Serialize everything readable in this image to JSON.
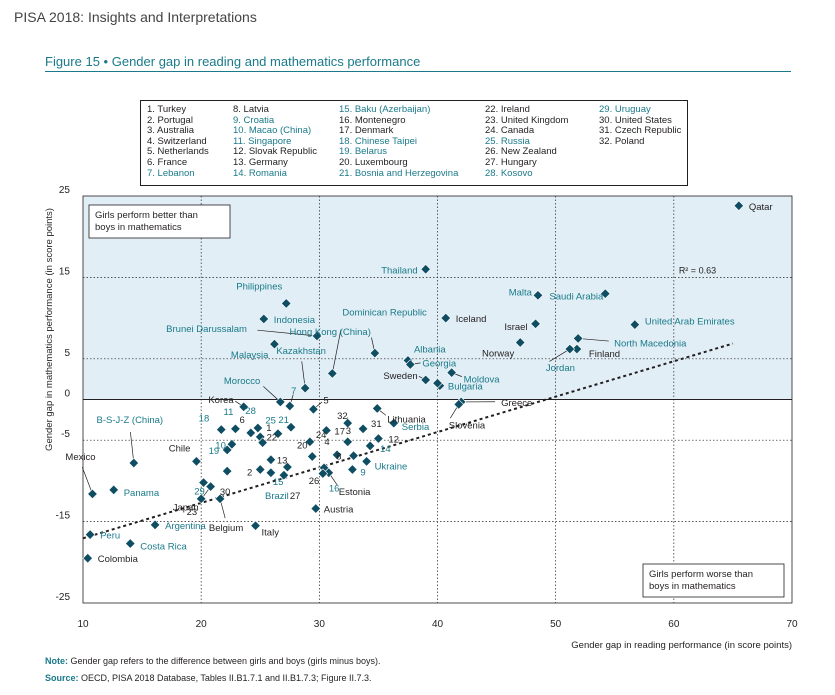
{
  "header": {
    "title": "PISA 2018: Insights and Interpretations"
  },
  "figure": {
    "number": "Figure 15",
    "separator": "•",
    "title": "Gender gap in reading and mathematics performance"
  },
  "country_key": [
    [
      "1. Turkey",
      "2. Portugal",
      "3. Australia",
      "4. Switzerland",
      "5. Netherlands",
      "6. France",
      "7. Lebanon"
    ],
    [
      "8. Latvia",
      "9. Croatia",
      "10. Macao (China)",
      "11. Singapore",
      "12. Slovak Republic",
      "13. Germany",
      "14. Romania"
    ],
    [
      "15. Baku (Azerbaijan)",
      "16. Montenegro",
      "17. Denmark",
      "18. Chinese Taipei",
      "19. Belarus",
      "20. Luxembourg",
      "21. Bosnia and Herzegovina"
    ],
    [
      "22. Ireland",
      "23. United Kingdom",
      "24. Canada",
      "25. Russia",
      "26. New Zealand",
      "27. Hungary",
      "28. Kosovo"
    ],
    [
      "29. Uruguay",
      "30. United States",
      "31. Czech Republic",
      "32. Poland"
    ]
  ],
  "country_key_teal": [
    "7. Lebanon",
    "9. Croatia",
    "10. Macao (China)",
    "11. Singapore",
    "14. Romania",
    "15. Baku (Azerbaijan)",
    "18. Chinese Taipei",
    "19. Belarus",
    "21. Bosnia and Herzegovina",
    "25. Russia",
    "28. Kosovo",
    "29. Uruguay"
  ],
  "colors": {
    "teal": "#1a7a8a",
    "dark": "#231f20",
    "marker": "#0f4d63",
    "band": "#e1eef5"
  },
  "chart_data": {
    "type": "scatter",
    "xlabel": "Gender gap in reading performance (in score points)",
    "ylabel": "Gender gap in mathematics performance (in score points)",
    "xlim": [
      10,
      70
    ],
    "ylim": [
      -25,
      25
    ],
    "x_ticks": [
      "10",
      "20",
      "30",
      "40",
      "50",
      "60",
      "70"
    ],
    "y_ticks": [
      "25",
      "15",
      "5",
      "0",
      "-5",
      "-15",
      "-25"
    ],
    "grid": "dotted at ticks",
    "shaded_region": "y > 0",
    "box_top": "Girls perform better than boys in mathematics",
    "box_bottom": "Girls perform worse than boys in mathematics",
    "trendline_label": "R² = 0.63",
    "points": [
      {
        "label": "Qatar",
        "x": 65.5,
        "y": 23.8,
        "c": "dark"
      },
      {
        "label": "Thailand",
        "x": 39,
        "y": 16,
        "c": "teal"
      },
      {
        "label": "Malta",
        "x": 48.5,
        "y": 12.8,
        "c": "teal"
      },
      {
        "label": "Saudi Arabia",
        "x": 54.2,
        "y": 13,
        "c": "teal"
      },
      {
        "label": "United Arab Emirates",
        "x": 56.7,
        "y": 9.2,
        "c": "teal"
      },
      {
        "label": "Iceland",
        "x": 40.7,
        "y": 10,
        "c": "dark"
      },
      {
        "label": "Israel",
        "x": 48.3,
        "y": 9.3,
        "c": "dark"
      },
      {
        "label": "North Macedonia",
        "x": 51.9,
        "y": 7.5,
        "c": "teal"
      },
      {
        "label": "Norway",
        "x": 47,
        "y": 7,
        "c": "dark"
      },
      {
        "label": "Finland",
        "x": 51.8,
        "y": 6.2,
        "c": "dark"
      },
      {
        "label": "Jordan",
        "x": 51.2,
        "y": 6.2,
        "c": "teal"
      },
      {
        "label": "Philippines",
        "x": 27.2,
        "y": 11.8,
        "c": "teal"
      },
      {
        "label": "Indonesia",
        "x": 25.3,
        "y": 9.9,
        "c": "teal"
      },
      {
        "label": "Brunei Darussalam",
        "x": 29.8,
        "y": 7.8,
        "c": "teal"
      },
      {
        "label": "Malaysia",
        "x": 26.2,
        "y": 6.8,
        "c": "teal"
      },
      {
        "label": "Dominican Republic",
        "x": 31.1,
        "y": 3.2,
        "c": "teal"
      },
      {
        "label": "Hong Kong (China)",
        "x": 34.7,
        "y": 5.7,
        "c": "teal"
      },
      {
        "label": "Albania",
        "x": 37.5,
        "y": 4.8,
        "c": "teal"
      },
      {
        "label": "Georgia",
        "x": 37.7,
        "y": 4.3,
        "c": "teal"
      },
      {
        "label": "Moldova",
        "x": 41.2,
        "y": 3.3,
        "c": "teal"
      },
      {
        "label": "Sweden",
        "x": 39,
        "y": 2.4,
        "c": "dark"
      },
      {
        "label": "Bulgaria",
        "x": 40.2,
        "y": 1.7,
        "c": "teal"
      },
      {
        "label": "Bulgaria-2",
        "x": 40,
        "y": 2,
        "c": "dark",
        "hide_label": true
      },
      {
        "label": "Kazakhstan",
        "x": 28.8,
        "y": 1.4,
        "c": "teal"
      },
      {
        "label": "Greece",
        "x": 42,
        "y": -0.3,
        "c": "dark"
      },
      {
        "label": "Slovenia",
        "x": 41.8,
        "y": -0.6,
        "c": "dark"
      },
      {
        "label": "Lithuania",
        "x": 34.9,
        "y": -1.1,
        "c": "dark"
      },
      {
        "label": "Serbia",
        "x": 36.3,
        "y": -2.9,
        "c": "teal"
      },
      {
        "label": "Morocco",
        "x": 26.7,
        "y": -0.3,
        "c": "teal"
      },
      {
        "label": "Korea",
        "x": 23.6,
        "y": -0.9,
        "c": "dark"
      },
      {
        "label": "7",
        "x": 27.5,
        "y": -0.8,
        "c": "teal"
      },
      {
        "label": "5",
        "x": 29.5,
        "y": -1.2,
        "c": "dark"
      },
      {
        "label": "32",
        "x": 32.4,
        "y": -2.9,
        "c": "dark"
      },
      {
        "label": "21",
        "x": 27.6,
        "y": -3.4,
        "c": "teal"
      },
      {
        "label": "17",
        "x": 30.6,
        "y": -3.8,
        "c": "dark"
      },
      {
        "label": "31",
        "x": 33.7,
        "y": -3.6,
        "c": "dark"
      },
      {
        "label": "18",
        "x": 21.7,
        "y": -3.7,
        "c": "teal"
      },
      {
        "label": "11",
        "x": 22.9,
        "y": -3.6,
        "c": "teal"
      },
      {
        "label": "28",
        "x": 24.8,
        "y": -3.5,
        "c": "teal"
      },
      {
        "label": "6",
        "x": 24.2,
        "y": -4.1,
        "c": "dark"
      },
      {
        "label": "25",
        "x": 26.5,
        "y": -4.2,
        "c": "teal"
      },
      {
        "label": "1",
        "x": 25,
        "y": -4.6,
        "c": "dark"
      },
      {
        "label": "24",
        "x": 29.2,
        "y": -5.2,
        "c": "dark"
      },
      {
        "label": "12",
        "x": 35,
        "y": -4.8,
        "c": "dark"
      },
      {
        "label": "3",
        "x": 32.4,
        "y": -5.2,
        "c": "dark"
      },
      {
        "label": "10",
        "x": 22.6,
        "y": -5.5,
        "c": "teal"
      },
      {
        "label": "22",
        "x": 25.2,
        "y": -5.3,
        "c": "dark"
      },
      {
        "label": "14",
        "x": 34.3,
        "y": -5.7,
        "c": "teal"
      },
      {
        "label": "19",
        "x": 22.2,
        "y": -6.2,
        "c": "teal"
      },
      {
        "label": "20",
        "x": 29.4,
        "y": -7,
        "c": "dark"
      },
      {
        "label": "4",
        "x": 31.5,
        "y": -6.8,
        "c": "dark"
      },
      {
        "label": "8",
        "x": 32.9,
        "y": -6.9,
        "c": "dark"
      },
      {
        "label": "Ukraine",
        "x": 34,
        "y": -7.6,
        "c": "teal"
      },
      {
        "label": "13",
        "x": 25.9,
        "y": -7.4,
        "c": "dark"
      },
      {
        "label": "Chile",
        "x": 19.6,
        "y": -7.6,
        "c": "dark"
      },
      {
        "label": "Mexico",
        "x": 10.8,
        "y": -11.6,
        "c": "dark"
      },
      {
        "label": "B-S-J-Z (China)",
        "x": 14.3,
        "y": -7.8,
        "c": "teal"
      },
      {
        "label": "Panama",
        "x": 12.6,
        "y": -11.1,
        "c": "teal"
      },
      {
        "label": "15",
        "x": 27.3,
        "y": -8.3,
        "c": "teal"
      },
      {
        "label": "9",
        "x": 32.8,
        "y": -8.6,
        "c": "teal"
      },
      {
        "label": "26",
        "x": 30.4,
        "y": -8.4,
        "c": "dark"
      },
      {
        "label": "Estonia",
        "x": 30.8,
        "y": -9,
        "c": "dark"
      },
      {
        "label": "Brazil",
        "x": 25.9,
        "y": -9,
        "c": "teal"
      },
      {
        "label": "2",
        "x": 25,
        "y": -8.6,
        "c": "dark"
      },
      {
        "label": "27",
        "x": 27,
        "y": -9.3,
        "c": "dark"
      },
      {
        "label": "16",
        "x": 30.3,
        "y": -9.1,
        "c": "teal"
      },
      {
        "label": "29",
        "x": 20.2,
        "y": -10.2,
        "c": "teal"
      },
      {
        "label": "30",
        "x": 22.2,
        "y": -8.8,
        "c": "dark"
      },
      {
        "label": "Japan",
        "x": 20.8,
        "y": -10.7,
        "c": "dark"
      },
      {
        "label": "23",
        "x": 20,
        "y": -12.2,
        "c": "dark"
      },
      {
        "label": "Belgium",
        "x": 21.6,
        "y": -12.2,
        "c": "dark"
      },
      {
        "label": "Austria",
        "x": 29.7,
        "y": -13.4,
        "c": "dark"
      },
      {
        "label": "Italy",
        "x": 24.6,
        "y": -15.5,
        "c": "dark"
      },
      {
        "label": "Argentina",
        "x": 16.1,
        "y": -15.4,
        "c": "teal"
      },
      {
        "label": "Peru",
        "x": 10.6,
        "y": -16.6,
        "c": "teal"
      },
      {
        "label": "Costa Rica",
        "x": 14,
        "y": -17.7,
        "c": "teal"
      },
      {
        "label": "Colombia",
        "x": 10.4,
        "y": -19.5,
        "c": "dark"
      }
    ]
  },
  "footer": {
    "note_label": "Note:",
    "note_text": " Gender gap refers to the difference between girls and boys (girls minus boys).",
    "source_label": "Source:",
    "source_text": " OECD, PISA 2018 Database, Tables II.B1.7.1 and II.B1.7.3; Figure II.7.3."
  }
}
